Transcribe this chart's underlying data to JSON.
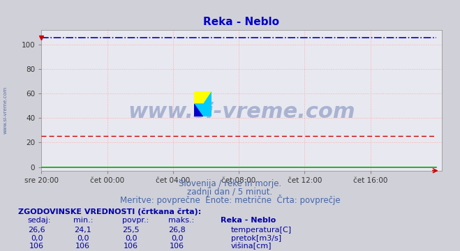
{
  "title": "Reka - Neblo",
  "title_color": "#0000cc",
  "title_fontsize": 11,
  "bg_color": "#d0d0d8",
  "plot_bg_color": "#e8e8f0",
  "xlabel_ticks": [
    "sre 20:00",
    "čet 00:00",
    "čet 04:00",
    "čet 08:00",
    "čet 12:00",
    "čet 16:00"
  ],
  "x_values_count": 289,
  "ylim": [
    -3,
    112
  ],
  "xlim": [
    0,
    292
  ],
  "yticks": [
    0,
    20,
    40,
    60,
    80,
    100
  ],
  "temp_value": 25.5,
  "flow_value": 0.0,
  "height_value": 106.0,
  "temp_color": "#cc0000",
  "flow_color": "#00aa00",
  "height_color": "#0000cc",
  "grid_color": "#ffaaaa",
  "subtitle1": "Slovenija / reke in morje.",
  "subtitle2": "zadnji dan / 5 minut.",
  "subtitle3": "Meritve: povprečne  Enote: metrične  Črta: povprečje",
  "subtitle_color": "#4466aa",
  "subtitle_fontsize": 8.5,
  "table_header": "ZGODOVINSKE VREDNOSTI (črtkana črta):",
  "col_headers": [
    "sedaj:",
    "min.:",
    "povpr.:",
    "maks.:",
    "Reka - Neblo"
  ],
  "row1": [
    "26,6",
    "24,1",
    "25,5",
    "26,8",
    "temperatura[C]"
  ],
  "row2": [
    "0,0",
    "0,0",
    "0,0",
    "0,0",
    "pretok[m3/s]"
  ],
  "row3": [
    "106",
    "106",
    "106",
    "106",
    "višina[cm]"
  ],
  "table_color": "#0000aa",
  "table_fontsize": 8,
  "watermark": "www.si-vreme.com",
  "watermark_color": "#1a3a8a",
  "watermark_fontsize": 22,
  "watermark_alpha": 0.3,
  "x_tick_positions": [
    0,
    48,
    96,
    144,
    192,
    240
  ],
  "arrow_color": "#cc0000"
}
